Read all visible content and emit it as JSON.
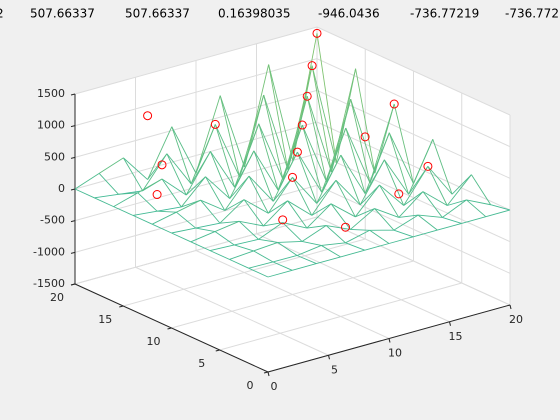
{
  "header": {
    "cells": [
      "2",
      "507.66337",
      "507.66337",
      "0.16398035",
      "-946.0436",
      "-736.77219",
      "-736.772"
    ]
  },
  "chart_data": {
    "type": "mesh3d",
    "x": [
      0,
      2,
      4,
      6,
      8,
      10,
      12,
      14,
      16,
      18,
      20
    ],
    "y": [
      0,
      2,
      4,
      6,
      8,
      10,
      12,
      14,
      16,
      18,
      20
    ],
    "z": [
      [
        0,
        0,
        0,
        0,
        0,
        0,
        0,
        0,
        0,
        0,
        0
      ],
      [
        0,
        -6,
        28,
        -17,
        56,
        -28,
        84,
        -39,
        112,
        -50,
        140
      ],
      [
        0,
        -11,
        56,
        -34,
        112,
        -56,
        168,
        -78,
        224,
        -101,
        280
      ],
      [
        0,
        42,
        -34,
        126,
        -67,
        210,
        -101,
        294,
        -134,
        378,
        -168
      ],
      [
        0,
        -22,
        112,
        -67,
        224,
        -112,
        336,
        -157,
        448,
        -202,
        560
      ],
      [
        0,
        70,
        -56,
        210,
        -112,
        350,
        -168,
        490,
        -224,
        630,
        -280
      ],
      [
        0,
        -34,
        168,
        -101,
        336,
        -168,
        504,
        -235,
        672,
        -302,
        840
      ],
      [
        0,
        98,
        -78,
        294,
        -157,
        490,
        -235,
        686,
        -314,
        882,
        -392
      ],
      [
        0,
        -45,
        224,
        -134,
        448,
        -224,
        672,
        -314,
        896,
        -403,
        1120
      ],
      [
        0,
        126,
        -101,
        378,
        -202,
        630,
        -302,
        882,
        -403,
        1134,
        -504
      ],
      [
        0,
        -56,
        280,
        -168,
        560,
        -280,
        840,
        -392,
        1120,
        -504,
        1400
      ]
    ],
    "points": {
      "color": "#ff0000",
      "x": [
        20,
        18,
        16,
        14,
        20,
        12,
        10,
        6,
        4,
        2,
        8,
        14,
        18,
        10,
        16,
        6
      ],
      "y": [
        20,
        18,
        16,
        14,
        12,
        12,
        10,
        6,
        16,
        14,
        2,
        4,
        6,
        18,
        10,
        20
      ],
      "z": [
        1400,
        1134,
        896,
        686,
        840,
        504,
        350,
        168,
        448,
        224,
        224,
        294,
        378,
        630,
        672,
        840
      ]
    },
    "xlim": [
      0,
      20
    ],
    "ylim": [
      0,
      20
    ],
    "zlim": [
      -1500,
      1500
    ],
    "xticks": [
      0,
      5,
      10,
      15,
      20
    ],
    "yticks": [
      0,
      5,
      10,
      15,
      20
    ],
    "zticks": [
      -1500,
      -1000,
      -500,
      0,
      500,
      1000,
      1500
    ],
    "grid": true
  }
}
